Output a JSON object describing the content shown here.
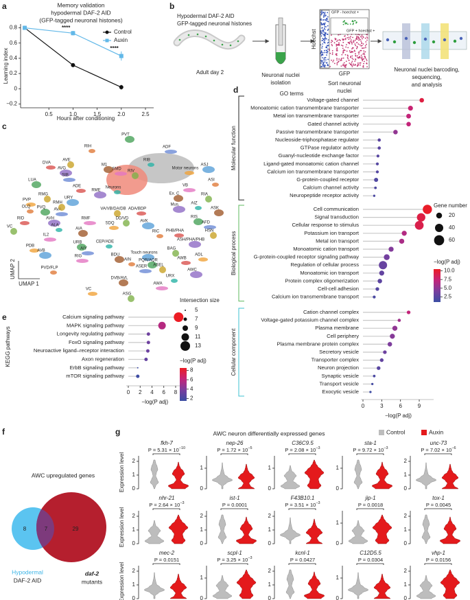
{
  "panel_labels": [
    "a",
    "b",
    "c",
    "d",
    "e",
    "f",
    "g"
  ],
  "chart_data": [
    {
      "type": "line",
      "title": [
        "Memory validation",
        "hypodermal DAF-2 AID",
        "(GFP-tagged neuronal histones)"
      ],
      "x": [
        0,
        1,
        2
      ],
      "series": [
        {
          "name": "Control",
          "color": "#111111",
          "values": [
            0.8,
            0.31,
            0.02
          ],
          "errors": [
            0.01,
            0.02,
            0.03
          ]
        },
        {
          "name": "Auxin",
          "color": "#62b8e8",
          "values": [
            0.8,
            0.73,
            0.43
          ],
          "errors": [
            0.01,
            0.03,
            0.06
          ]
        }
      ],
      "annotations": [
        {
          "x": 1,
          "text": "****"
        },
        {
          "x": 2,
          "text": "****"
        }
      ],
      "xlim": [
        0,
        2.5
      ],
      "xticks": [
        0.5,
        {
          "value": 1,
          "label": "1.0"
        },
        1.5,
        {
          "value": 2,
          "label": "2.0"
        },
        2.5
      ],
      "ylim": [
        -0.25,
        0.85
      ],
      "yticks": [
        {
          "value": -0.2,
          "label": "−0.2"
        },
        0,
        0.2,
        0.4,
        0.6,
        0.8
      ],
      "xlabel": "Hours after conditioning",
      "ylabel": "Learning index",
      "legend": "top-right"
    },
    {
      "type": "dot",
      "title": "GO terms",
      "groups": [
        {
          "name": "Molecular function",
          "color": "#222222",
          "terms": [
            "Voltage-gated channel",
            "Monoatomic cation transmembrane transporter",
            "Metal ion transmembrane transporter",
            "Gated channel activity",
            "Passive transmembrane transporter",
            "Nucleoside-triphosphatase regulator",
            "GTPase regulator activity",
            "Guanyl-nucleotide exchange factor",
            "Ligand-gated monoatomic cation channel",
            "Calcium ion transmembrane transporter",
            "G-protein-coupled receptor",
            "Calcium channel activity",
            "Neuropeptide receptor activity"
          ],
          "values": [
            9.4,
            7.6,
            7.3,
            7.3,
            5.2,
            2.6,
            2.6,
            2.4,
            2.3,
            2.3,
            2.1,
            2.0,
            1.8
          ],
          "sizes": [
            12,
            14,
            13,
            12,
            12,
            6,
            6,
            5,
            5,
            5,
            10,
            4,
            3
          ]
        },
        {
          "name": "Biological process",
          "color": "#5cb85c",
          "terms": [
            "Cell communication",
            "Signal transduction",
            "Cellular response to stimulus",
            "Potassium ion transport",
            "Metal ion transport",
            "Monoatomic cation transport",
            "G-protein-coupled receptor signaling pathway",
            "Regulation of cellular process",
            "Monoatomic ion transport",
            "Protein complex oligomerization",
            "Cell-cell adhesion",
            "Calcium ion transmembrane transport"
          ],
          "values": [
            10.3,
            9.3,
            9.0,
            6.6,
            6.2,
            4.5,
            3.8,
            3.2,
            3.0,
            2.7,
            2.3,
            1.8
          ],
          "sizes": [
            50,
            42,
            45,
            15,
            15,
            15,
            20,
            40,
            15,
            12,
            8,
            5
          ]
        },
        {
          "name": "Cellular component",
          "color": "#3cc0d0",
          "terms": [
            "Cation channel complex",
            "Voltage-gated potassium channel complex",
            "Plasma membrane",
            "Cell periphery",
            "Plasma membrane protein complex",
            "Secretory vesicle",
            "Transporter complex",
            "Neuron projection",
            "Synaptic vesicle",
            "Transport vesicle",
            "Exocytic vesicle"
          ],
          "values": [
            7.3,
            5.8,
            5.1,
            4.7,
            4.3,
            3.5,
            3.0,
            2.5,
            1.8,
            1.5,
            1.2
          ],
          "sizes": [
            8,
            6,
            15,
            15,
            12,
            8,
            8,
            8,
            4,
            3,
            3
          ]
        }
      ],
      "xlim": [
        0,
        11.3
      ],
      "xticks": [
        0,
        3,
        6,
        9
      ],
      "xlabel": "−log(P adj)",
      "size_legend": {
        "title": "Gene number",
        "values": [
          20,
          40,
          60
        ]
      },
      "color_legend": {
        "title": "−log(P adj)",
        "ticks": [
          {
            "value": 10,
            "label": "10.0"
          },
          7.5,
          {
            "value": 5,
            "label": "5.0"
          },
          2.5
        ],
        "range": [
          1,
          10.5
        ],
        "colors": [
          "#3b4da3",
          "#7a3e9e",
          "#c42479",
          "#ec1c24"
        ]
      }
    },
    {
      "type": "dot",
      "categories": [
        "Calcium signaling pathway",
        "MAPK signaling pathway",
        "Longevity regulating pathway",
        "FoxO signaling pathway",
        "Neuroactive ligand–receptor interaction",
        "Axon regeneration",
        "ErbB signaling pathway",
        "mTOR signaling pathway"
      ],
      "values": [
        8.5,
        5.7,
        3.4,
        3.4,
        3.3,
        3.0,
        1.6,
        1.6
      ],
      "sizes": [
        13,
        11,
        7,
        7,
        7,
        7,
        5,
        7
      ],
      "xlim": [
        0,
        9
      ],
      "xticks": [
        0,
        2,
        4,
        6,
        8
      ],
      "xlabel": "−log(P adj)",
      "ylabel": "KEGG pathways",
      "size_legend": {
        "title": "Intersection size",
        "values": [
          5,
          7,
          9,
          11,
          13
        ]
      },
      "color_legend": {
        "title": "−log(P adj)",
        "ticks": [
          8,
          6,
          4,
          2
        ],
        "range": [
          1.5,
          8.5
        ],
        "colors": [
          "#3b4da3",
          "#7a3e9e",
          "#c42479",
          "#ec1c24"
        ]
      }
    }
  ],
  "diagram_b": {
    "title": [
      "Hypodermal DAF-2 AID",
      "GFP-tagged neuronal histones"
    ],
    "steps": [
      [
        "Adult day 2"
      ],
      [
        "Neuronal nuclei",
        "isolation"
      ],
      [
        "Sort neuronal",
        "nuclei"
      ],
      [
        "Neuronal nuclei barcoding,",
        "sequencing,",
        "and analysis"
      ]
    ],
    "facs": {
      "y_axis": "Hoechst",
      "x_axis": "GFP",
      "gates": [
        "GFP - hoechst +",
        "GFP + hoechst +"
      ]
    }
  },
  "umap_c": {
    "labels": [
      "RIH",
      "PVT",
      "ADF",
      "AVE",
      "DVA",
      "AVG",
      "RIB",
      "M1",
      "SMD",
      "RIV",
      "Motor neurons",
      "ASJ",
      "ASI",
      "LUA",
      "SIB",
      "RMG",
      "ADE",
      "RME",
      "Neurons",
      "Ex. C",
      "VB",
      "RIA",
      "PVP",
      "URY",
      "OLQ",
      "PVQ",
      "AVA",
      "RMH",
      "RID",
      "AVH",
      "ALA",
      "AIA",
      "IL2",
      "VC",
      "PDB",
      "AVB",
      "PVD/FLP",
      "URB",
      "AIY",
      "VA/VB/DA/DB",
      "ADA/BDP",
      "Mus.",
      "AIZ",
      "ASK",
      "RMF",
      "DD/VD",
      "SDQ",
      "AVK",
      "RIC",
      "RIS",
      "AFD",
      "HSN",
      "PHB/PHA",
      "ASH/PHA/PHB",
      "CEP/ADE",
      "BDU",
      "RIG",
      "BAG",
      "ADL",
      "Touch neurons",
      "AIN",
      "PQR/AQR",
      "ASER",
      "ASEL",
      "AWB",
      "AWC",
      "URX",
      "DVB/AVL",
      "AWA",
      "ASG",
      "VC"
    ],
    "axis_labels": [
      "UMAP 1",
      "UMAP 2"
    ]
  },
  "venn_f": {
    "title": "AWC upregulated genes",
    "sets": [
      {
        "name": [
          "Hypodermal",
          "DAF-2 AID"
        ],
        "only": "8"
      },
      {
        "name": [
          "daf-2",
          "mutants"
        ],
        "only": "29"
      }
    ],
    "intersection": "7"
  },
  "violins_g": {
    "title": "AWC neuron differentially expressed genes",
    "legend": [
      {
        "name": "Control",
        "color": "#bdbdbd"
      },
      {
        "name": "Auxin",
        "color": "#e41a1c"
      }
    ],
    "ylabel": "Expression level",
    "panels": [
      {
        "gene": "fkh-7",
        "p": "P = 5.31 × 10",
        "p_exp": "−10",
        "ylim": [
          0,
          2.4
        ],
        "yticks": [
          0,
          1,
          2
        ]
      },
      {
        "gene": "nep-26",
        "p": "P = 1.72 × 10",
        "p_exp": "−5",
        "ylim": [
          0,
          1.6
        ],
        "yticks": [
          0,
          1
        ]
      },
      {
        "gene": "C36C9.5",
        "p": "P = 2.08 × 10",
        "p_exp": "−3",
        "ylim": [
          0,
          1.6
        ],
        "yticks": [
          0,
          1
        ]
      },
      {
        "gene": "sta-1",
        "p": "P = 9.72 × 10",
        "p_exp": "−3",
        "ylim": [
          0,
          1.6
        ],
        "yticks": [
          0,
          1
        ]
      },
      {
        "gene": "unc-73",
        "p": "P = 7.02 × 10",
        "p_exp": "−6",
        "ylim": [
          0,
          2.4
        ],
        "yticks": [
          0,
          1,
          2
        ]
      },
      {
        "gene": "nhr-21",
        "p": "P = 2.64 × 10",
        "p_exp": "−3",
        "ylim": [
          0,
          2.4
        ],
        "yticks": [
          0,
          1,
          2
        ]
      },
      {
        "gene": "ist-1",
        "p": "P = 0.0001",
        "ylim": [
          0,
          2.4
        ],
        "yticks": [
          0,
          1,
          2
        ]
      },
      {
        "gene": "F43B10.1",
        "p": "P = 3.51 × 10",
        "p_exp": "−3",
        "ylim": [
          0,
          2.4
        ],
        "yticks": [
          0,
          1,
          2
        ]
      },
      {
        "gene": "jip-1",
        "p": "P = 0.0018",
        "ylim": [
          0,
          1.6
        ],
        "yticks": [
          0,
          1
        ]
      },
      {
        "gene": "tox-1",
        "p": "P = 0.0045",
        "ylim": [
          0,
          2.4
        ],
        "yticks": [
          0,
          1,
          2
        ]
      },
      {
        "gene": "mec-2",
        "p": "P = 0.0151",
        "ylim": [
          0,
          2.4
        ],
        "yticks": [
          0,
          1,
          2
        ]
      },
      {
        "gene": "scpl-1",
        "p": "P = 3.25 × 10",
        "p_exp": "−3",
        "ylim": [
          0,
          1.6
        ],
        "yticks": [
          0,
          1
        ]
      },
      {
        "gene": "kcnl-1",
        "p": "P = 0.0427",
        "ylim": [
          0,
          2.4
        ],
        "yticks": [
          0,
          1,
          2
        ]
      },
      {
        "gene": "C12D5.5",
        "p": "P = 0.0304",
        "ylim": [
          0,
          1.6
        ],
        "yticks": [
          0,
          1
        ]
      },
      {
        "gene": "vhp-1",
        "p": "P = 0.0156",
        "ylim": [
          0,
          2.4
        ],
        "yticks": [
          0,
          1,
          2
        ]
      }
    ]
  }
}
